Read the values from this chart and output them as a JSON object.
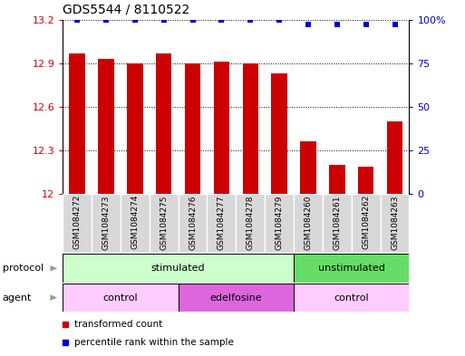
{
  "title": "GDS5544 / 8110522",
  "samples": [
    "GSM1084272",
    "GSM1084273",
    "GSM1084274",
    "GSM1084275",
    "GSM1084276",
    "GSM1084277",
    "GSM1084278",
    "GSM1084279",
    "GSM1084260",
    "GSM1084261",
    "GSM1084262",
    "GSM1084263"
  ],
  "bar_values": [
    12.97,
    12.93,
    12.9,
    12.97,
    12.9,
    12.91,
    12.9,
    12.83,
    12.36,
    12.2,
    12.19,
    12.5
  ],
  "bar_color": "#cc0000",
  "dot_values": [
    100,
    100,
    100,
    100,
    100,
    100,
    100,
    100,
    97,
    97,
    97,
    97
  ],
  "dot_color": "#0000cc",
  "ymin": 12.0,
  "ymax": 13.2,
  "yticks": [
    12.0,
    12.3,
    12.6,
    12.9,
    13.2
  ],
  "ytick_labels": [
    "12",
    "12.3",
    "12.6",
    "12.9",
    "13.2"
  ],
  "y2min": 0,
  "y2max": 100,
  "y2ticks": [
    0,
    25,
    50,
    75,
    100
  ],
  "y2ticklabels": [
    "0",
    "25",
    "50",
    "75",
    "100%"
  ],
  "protocol_labels": [
    {
      "text": "stimulated",
      "start": 0,
      "end": 8,
      "color": "#ccffcc"
    },
    {
      "text": "unstimulated",
      "start": 8,
      "end": 12,
      "color": "#66dd66"
    }
  ],
  "agent_labels": [
    {
      "text": "control",
      "start": 0,
      "end": 4,
      "color": "#ffccff"
    },
    {
      "text": "edelfosine",
      "start": 4,
      "end": 8,
      "color": "#dd66dd"
    },
    {
      "text": "control",
      "start": 8,
      "end": 12,
      "color": "#ffccff"
    }
  ],
  "legend_items": [
    {
      "label": "transformed count",
      "color": "#cc0000"
    },
    {
      "label": "percentile rank within the sample",
      "color": "#0000cc"
    }
  ],
  "bar_width": 0.55
}
